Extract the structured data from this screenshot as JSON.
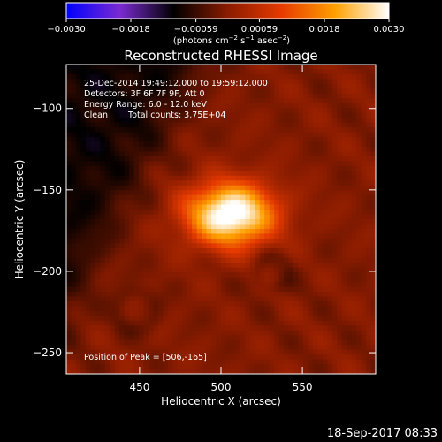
{
  "chart_data": {
    "type": "heatmap",
    "title": "Reconstructed RHESSI Image",
    "xlabel": "Heliocentric X (arcsec)",
    "ylabel": "Heliocentric Y (arcsec)",
    "xlim": [
      405,
      595
    ],
    "ylim": [
      -263,
      -73
    ],
    "x_ticks": [
      450,
      500,
      550
    ],
    "y_ticks": [
      -100,
      -150,
      -200,
      -250
    ],
    "colorbar": {
      "range": [
        -0.003,
        0.003
      ],
      "ticks": [
        -0.003,
        -0.0018,
        -0.00059,
        0.00059,
        0.0018,
        0.003
      ],
      "tick_labels": [
        "−0.0030",
        "−0.0018",
        "−0.00059",
        "0.00059",
        "0.0018",
        "0.0030"
      ],
      "units_parts": [
        "(photons cm",
        "−2",
        " s",
        "−1",
        " asec",
        "−2",
        ")"
      ]
    },
    "annotations": {
      "time_range": "25-Dec-2014 19:49:12.000 to 19:59:12.000",
      "detectors": "Detectors: 3F 6F 7F 9F, Att 0",
      "energy_range": "Energy Range: 6.0 - 12.0 keV",
      "method": "Clean",
      "total_counts": "Total counts: 3.75E+04",
      "peak_position": "Position of Peak = [506,-165]"
    },
    "peak": [
      506,
      -165
    ],
    "timestamp": "18-Sep-2017 08:33",
    "colors": {
      "colormap": [
        "#0000ff",
        "#7a2bd0",
        "#000000",
        "#8a1c00",
        "#e63a00",
        "#ffa000",
        "#ffffff"
      ],
      "background": "#000000",
      "text": "#ffffff"
    }
  }
}
